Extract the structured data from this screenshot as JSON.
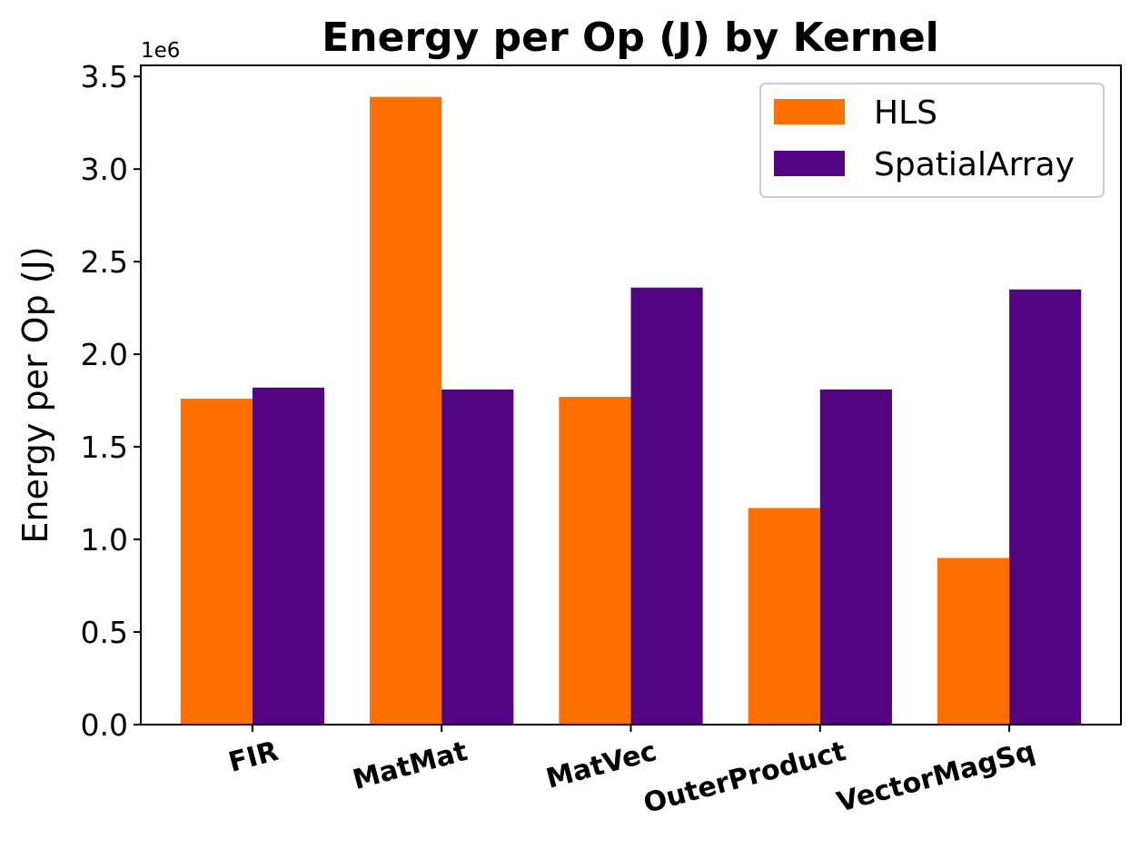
{
  "chart_data": {
    "type": "bar",
    "title": "Energy per Op (J) by Kernel",
    "xlabel": "",
    "ylabel": "Energy per Op (J)",
    "y_offset_label": "1e6",
    "y_scale": 1000000,
    "ylim": [
      0,
      3.56
    ],
    "yticks": [
      0.0,
      0.5,
      1.0,
      1.5,
      2.0,
      2.5,
      3.0,
      3.5
    ],
    "ytick_labels": [
      "0.0",
      "0.5",
      "1.0",
      "1.5",
      "2.0",
      "2.5",
      "3.0",
      "3.5"
    ],
    "categories": [
      "FIR",
      "MatMat",
      "MatVec",
      "OuterProduct",
      "VectorMagSq"
    ],
    "series": [
      {
        "name": "HLS",
        "color": "#ff7000",
        "values": [
          1.76,
          3.39,
          1.77,
          1.17,
          0.9
        ]
      },
      {
        "name": "SpatialArray",
        "color": "#540583",
        "values": [
          1.82,
          1.81,
          2.36,
          1.81,
          2.35
        ]
      }
    ],
    "grid": false,
    "legend_position": "top-right"
  }
}
